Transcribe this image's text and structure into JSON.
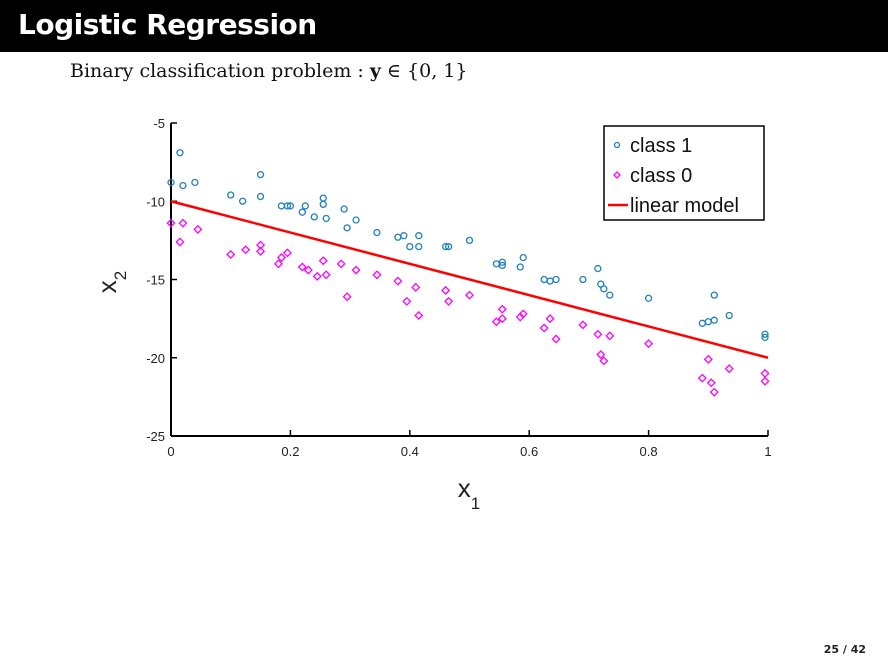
{
  "slide": {
    "title": "Logistic Regression",
    "subtitle_prefix": "Binary classification problem :",
    "subtitle_var": "y",
    "subtitle_math": "∈ {0, 1}",
    "page": "25 / 42"
  },
  "chart_data": {
    "type": "scatter",
    "xlabel": "x",
    "xlabel_sub": "1",
    "ylabel": "x",
    "ylabel_sub": "2",
    "xlim": [
      0,
      1
    ],
    "ylim": [
      -25,
      -5
    ],
    "xticks": [
      0,
      0.2,
      0.4,
      0.6,
      0.8,
      1
    ],
    "xtick_labels": [
      "0",
      "0.2",
      "0.4",
      "0.6",
      "0.8",
      "1"
    ],
    "yticks": [
      -5,
      -10,
      -15,
      -20,
      -25
    ],
    "ytick_labels": [
      "-5",
      "-10",
      "-15",
      "-20",
      "-25"
    ],
    "grid": false,
    "legend_position": "top-right",
    "colors": {
      "class1": "#1f7fc0",
      "class0": "#ff00ff",
      "line": "#ff0000"
    },
    "series": [
      {
        "name": "class 1",
        "marker": "circle",
        "points": [
          [
            0.0,
            -8.8
          ],
          [
            0.015,
            -6.9
          ],
          [
            0.02,
            -9.0
          ],
          [
            0.04,
            -8.8
          ],
          [
            0.1,
            -9.6
          ],
          [
            0.12,
            -10.0
          ],
          [
            0.15,
            -8.3
          ],
          [
            0.15,
            -9.7
          ],
          [
            0.185,
            -10.3
          ],
          [
            0.195,
            -10.3
          ],
          [
            0.2,
            -10.3
          ],
          [
            0.22,
            -10.7
          ],
          [
            0.225,
            -10.3
          ],
          [
            0.24,
            -11.0
          ],
          [
            0.255,
            -10.2
          ],
          [
            0.255,
            -9.8
          ],
          [
            0.26,
            -11.1
          ],
          [
            0.29,
            -10.5
          ],
          [
            0.295,
            -11.7
          ],
          [
            0.31,
            -11.2
          ],
          [
            0.345,
            -12.0
          ],
          [
            0.38,
            -12.3
          ],
          [
            0.39,
            -12.2
          ],
          [
            0.4,
            -12.9
          ],
          [
            0.415,
            -12.2
          ],
          [
            0.415,
            -12.9
          ],
          [
            0.46,
            -12.9
          ],
          [
            0.465,
            -12.9
          ],
          [
            0.5,
            -12.5
          ],
          [
            0.545,
            -14.0
          ],
          [
            0.555,
            -13.9
          ],
          [
            0.555,
            -14.1
          ],
          [
            0.585,
            -14.2
          ],
          [
            0.59,
            -13.6
          ],
          [
            0.625,
            -15.0
          ],
          [
            0.635,
            -15.1
          ],
          [
            0.645,
            -15.0
          ],
          [
            0.69,
            -15.0
          ],
          [
            0.715,
            -14.3
          ],
          [
            0.72,
            -15.3
          ],
          [
            0.725,
            -15.6
          ],
          [
            0.735,
            -16.0
          ],
          [
            0.8,
            -16.2
          ],
          [
            0.89,
            -17.8
          ],
          [
            0.9,
            -17.7
          ],
          [
            0.91,
            -16.0
          ],
          [
            0.91,
            -17.6
          ],
          [
            0.935,
            -17.3
          ],
          [
            0.995,
            -18.5
          ],
          [
            0.995,
            -18.7
          ]
        ]
      },
      {
        "name": "class 0",
        "marker": "diamond",
        "points": [
          [
            0.0,
            -11.4
          ],
          [
            0.015,
            -12.6
          ],
          [
            0.02,
            -11.4
          ],
          [
            0.045,
            -11.8
          ],
          [
            0.1,
            -13.4
          ],
          [
            0.125,
            -13.1
          ],
          [
            0.15,
            -12.8
          ],
          [
            0.15,
            -13.2
          ],
          [
            0.18,
            -14.0
          ],
          [
            0.185,
            -13.6
          ],
          [
            0.195,
            -13.3
          ],
          [
            0.22,
            -14.2
          ],
          [
            0.23,
            -14.4
          ],
          [
            0.245,
            -14.8
          ],
          [
            0.255,
            -13.8
          ],
          [
            0.26,
            -14.7
          ],
          [
            0.285,
            -14.0
          ],
          [
            0.295,
            -16.1
          ],
          [
            0.31,
            -14.4
          ],
          [
            0.345,
            -14.7
          ],
          [
            0.38,
            -15.1
          ],
          [
            0.395,
            -16.4
          ],
          [
            0.41,
            -15.5
          ],
          [
            0.415,
            -17.3
          ],
          [
            0.46,
            -15.7
          ],
          [
            0.465,
            -16.4
          ],
          [
            0.5,
            -16.0
          ],
          [
            0.545,
            -17.7
          ],
          [
            0.555,
            -16.9
          ],
          [
            0.555,
            -17.5
          ],
          [
            0.585,
            -17.4
          ],
          [
            0.59,
            -17.2
          ],
          [
            0.625,
            -18.1
          ],
          [
            0.635,
            -17.5
          ],
          [
            0.645,
            -18.8
          ],
          [
            0.69,
            -17.9
          ],
          [
            0.715,
            -18.5
          ],
          [
            0.72,
            -19.8
          ],
          [
            0.725,
            -20.2
          ],
          [
            0.735,
            -18.6
          ],
          [
            0.8,
            -19.1
          ],
          [
            0.89,
            -21.3
          ],
          [
            0.9,
            -20.1
          ],
          [
            0.905,
            -21.6
          ],
          [
            0.91,
            -22.2
          ],
          [
            0.935,
            -20.7
          ],
          [
            0.995,
            -21.0
          ],
          [
            0.995,
            -21.5
          ]
        ]
      },
      {
        "name": "linear model",
        "type": "line",
        "points": [
          [
            0,
            -10
          ],
          [
            1,
            -20
          ]
        ]
      }
    ]
  }
}
